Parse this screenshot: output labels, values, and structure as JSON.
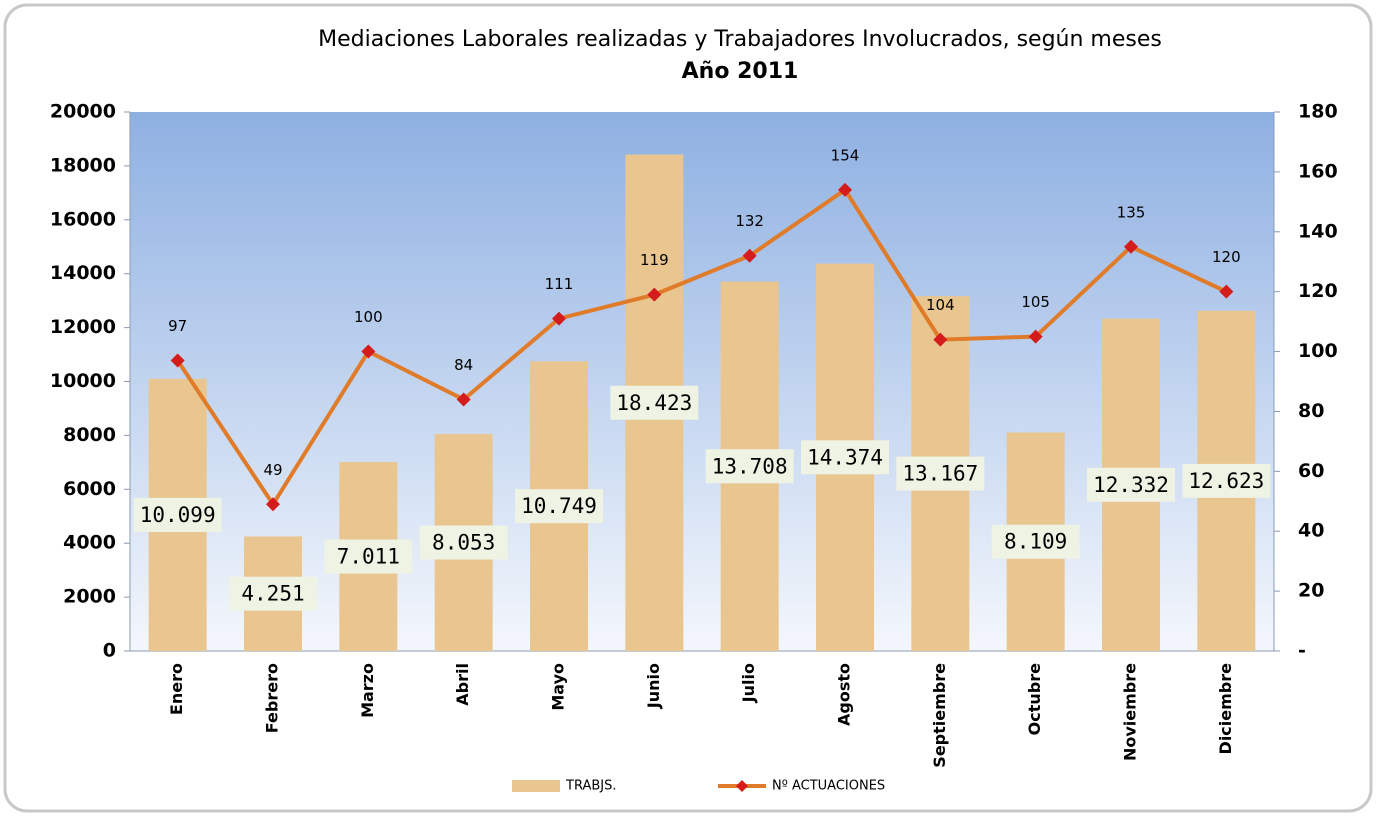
{
  "chart_data": {
    "type": "combo",
    "title": "Mediaciones Laborales  realizadas y Trabajadores Involucrados, según meses",
    "subtitle": "Año 2011",
    "categories": [
      "Enero",
      "Febrero",
      "Marzo",
      "Abril",
      "Mayo",
      "Junio",
      "Julio",
      "Agosto",
      "Septiembre",
      "Octubre",
      "Noviembre",
      "Diciembre"
    ],
    "series": [
      {
        "name": "TRABJS.",
        "type": "bar",
        "color": "#e9c68f",
        "values": [
          10099,
          4251,
          7011,
          8053,
          10749,
          18423,
          13708,
          14374,
          13167,
          8109,
          12332,
          12623
        ],
        "value_labels": [
          "10.099",
          "4.251",
          "7.011",
          "8.053",
          "10.749",
          "18.423",
          "13.708",
          "14.374",
          "13.167",
          "8.109",
          "12.332",
          "12.623"
        ]
      },
      {
        "name": "Nº ACTUACIONES",
        "type": "line",
        "axis": "y2",
        "color": "#e07b2a",
        "marker_color": "#d41c1c",
        "values": [
          97,
          49,
          100,
          84,
          111,
          119,
          132,
          154,
          104,
          105,
          135,
          120
        ]
      }
    ],
    "ylim": [
      0,
      20000
    ],
    "yticks": [
      0,
      2000,
      4000,
      6000,
      8000,
      10000,
      12000,
      14000,
      16000,
      18000,
      20000
    ],
    "y2lim": [
      0,
      180
    ],
    "y2ticks": [
      {
        "value": 0,
        "label": "-"
      },
      20,
      40,
      60,
      80,
      100,
      120,
      140,
      160,
      180
    ],
    "legend": "bottom"
  }
}
